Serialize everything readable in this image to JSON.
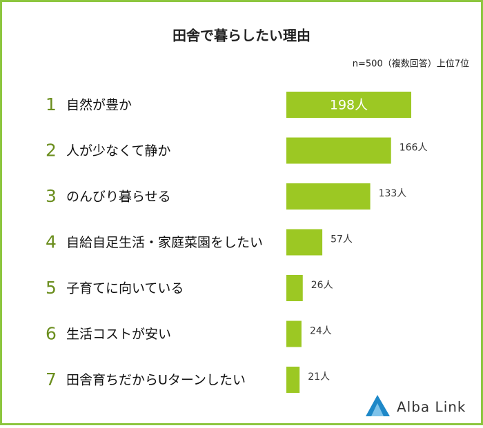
{
  "chart_data": {
    "type": "bar",
    "orientation": "horizontal",
    "title": "田舎で暮らしたい理由",
    "subtitle": "n=500（複数回答）上位7位",
    "ranks": [
      1,
      2,
      3,
      4,
      5,
      6,
      7
    ],
    "categories": [
      "自然が豊か",
      "人が少なくて静か",
      "のんびり暮らせる",
      "自給自足生活・家庭菜園をしたい",
      "子育てに向いている",
      "生活コストが安い",
      "田舎育ちだからUターンしたい"
    ],
    "values": [
      198,
      166,
      133,
      57,
      26,
      24,
      21
    ],
    "value_labels": [
      "198人",
      "166人",
      "133人",
      "57人",
      "26人",
      "24人",
      "21人"
    ],
    "color": "#9cc823",
    "logo": "Alba Link"
  }
}
